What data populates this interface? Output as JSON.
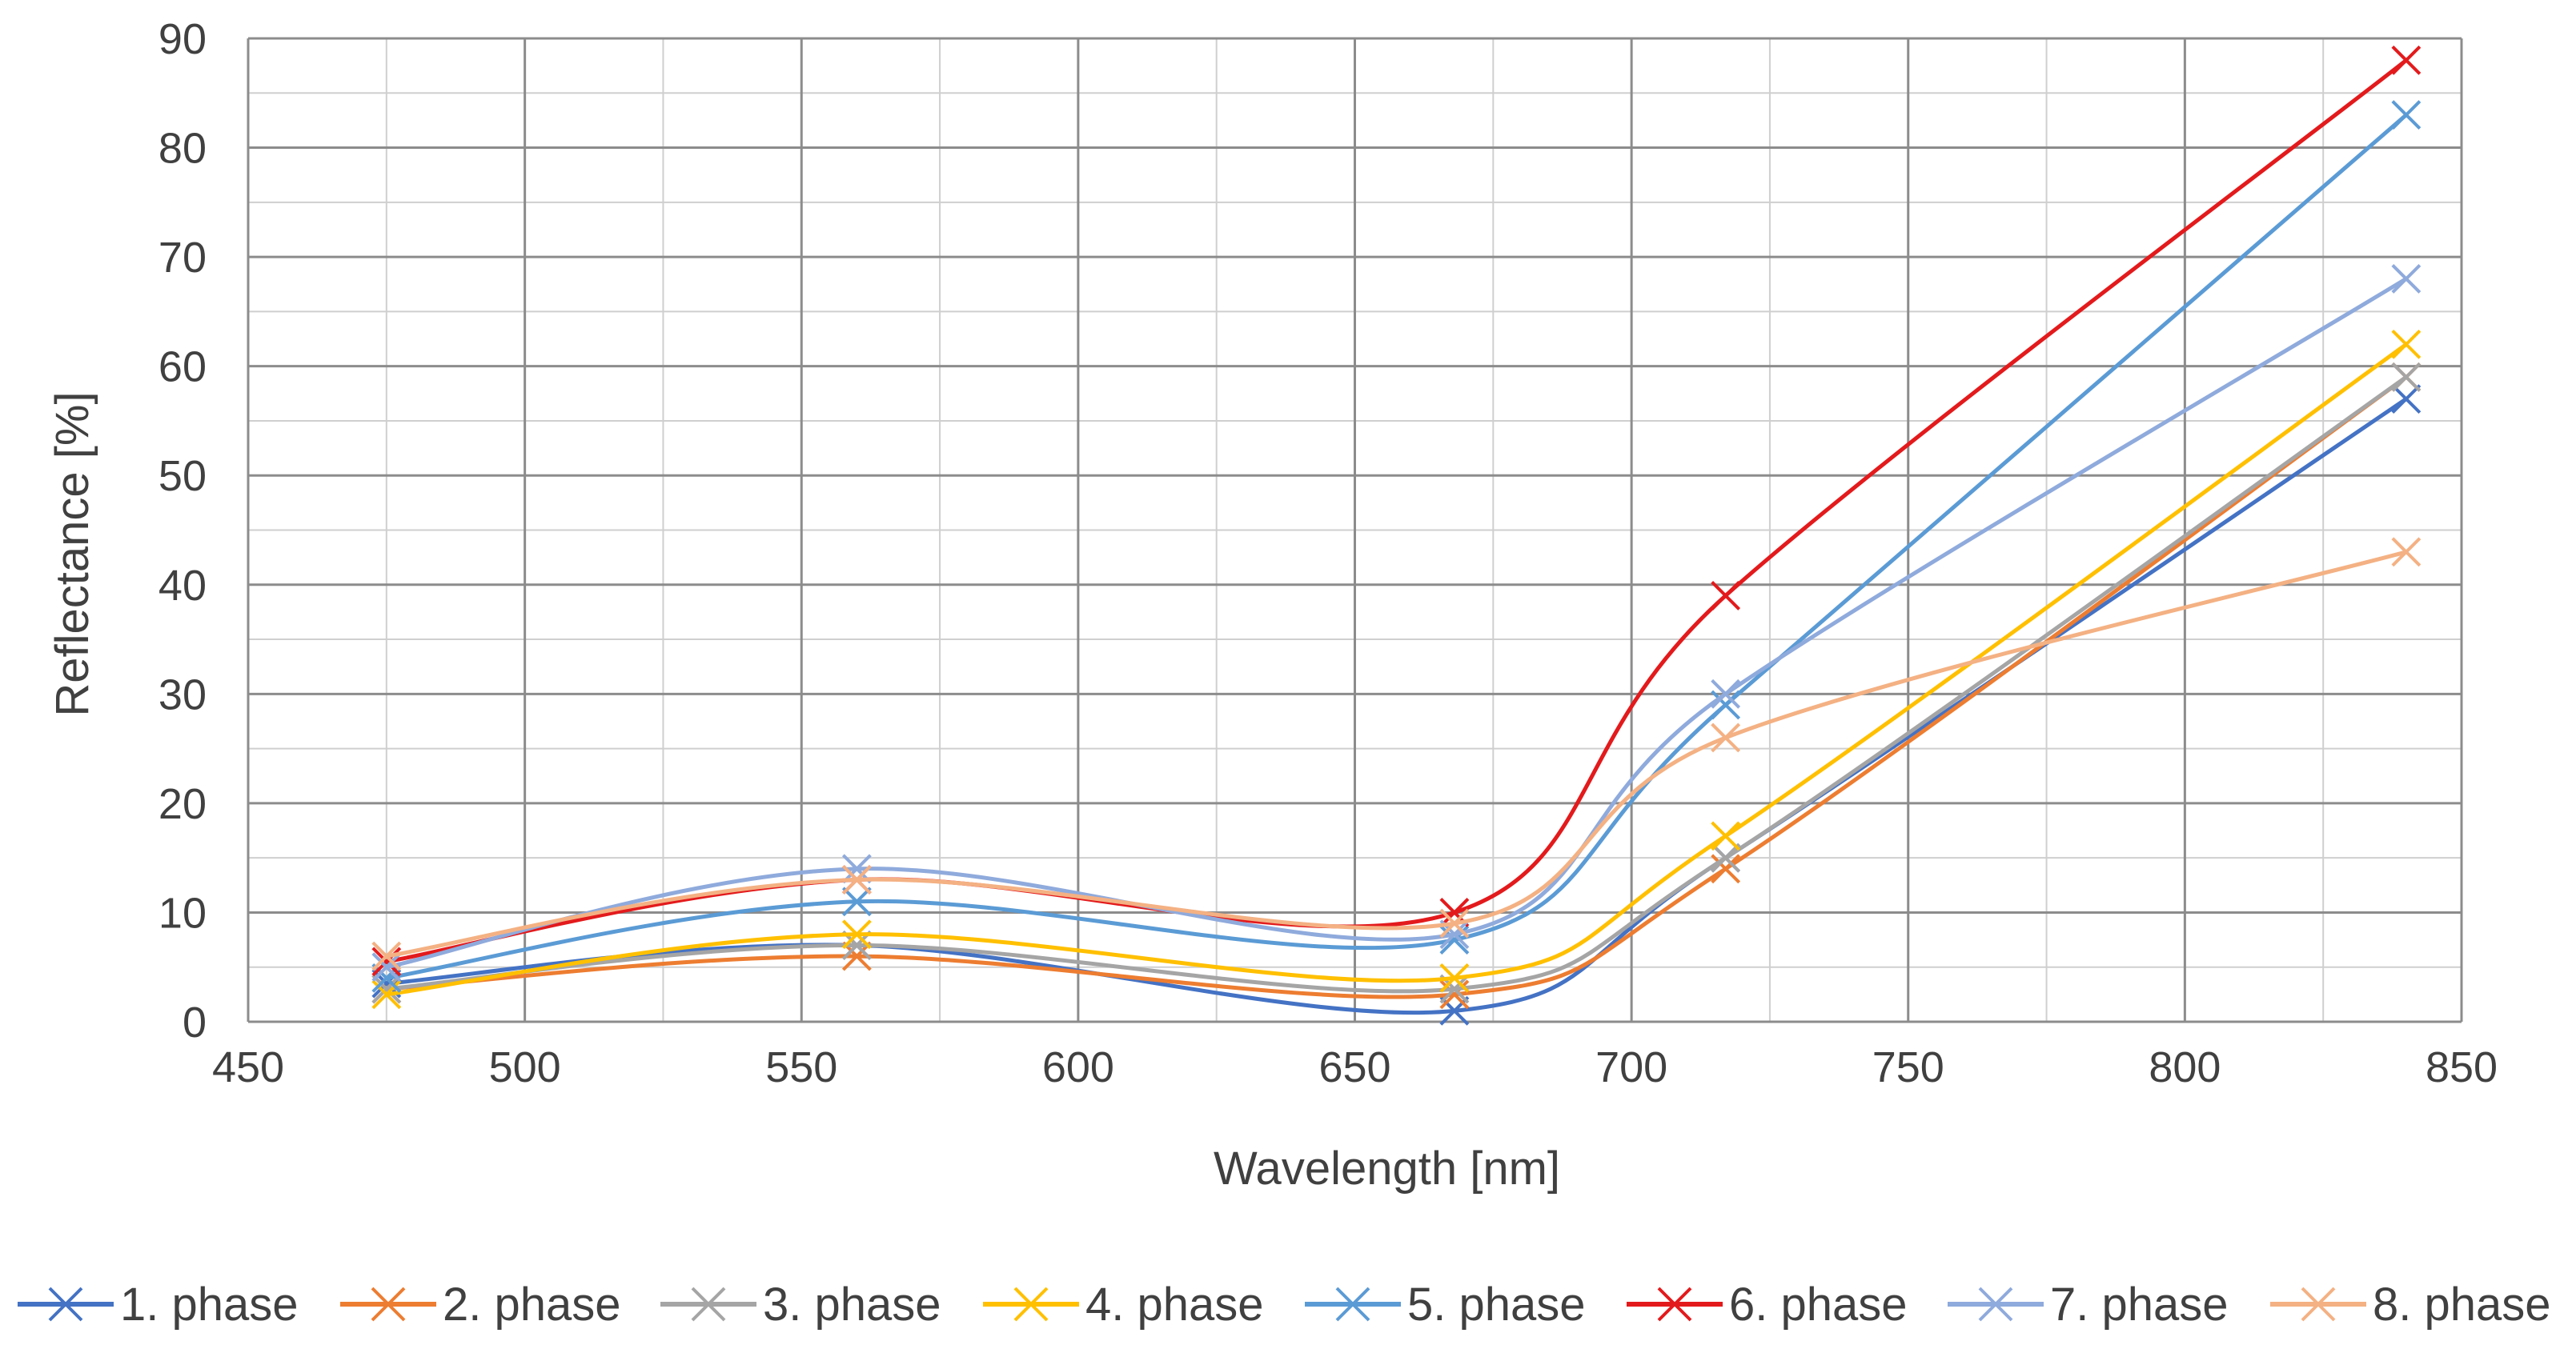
{
  "chart_data": {
    "type": "line",
    "title": "",
    "xlabel": "Wavelength  [nm]",
    "ylabel": "Reflectance  [%]",
    "xlim": [
      450,
      850
    ],
    "ylim": [
      0,
      90
    ],
    "x_ticks": [
      450,
      500,
      550,
      600,
      650,
      700,
      750,
      800,
      850
    ],
    "y_ticks": [
      0,
      10,
      20,
      30,
      40,
      50,
      60,
      70,
      80,
      90
    ],
    "x_minor_step": 25,
    "y_minor_step": 5,
    "grid": true,
    "legend_position": "bottom",
    "marker": "x",
    "smooth": true,
    "x": [
      475,
      560,
      668,
      717,
      840
    ],
    "series": [
      {
        "name": "1. phase",
        "color": "#4472c4",
        "values": [
          3.5,
          7,
          1,
          15,
          57
        ]
      },
      {
        "name": "2. phase",
        "color": "#ed7d31",
        "values": [
          3,
          6,
          2.5,
          14,
          59
        ]
      },
      {
        "name": "3. phase",
        "color": "#a5a5a5",
        "values": [
          3,
          7,
          3,
          15,
          59
        ]
      },
      {
        "name": "4. phase",
        "color": "#ffc000",
        "values": [
          2.5,
          8,
          4,
          17,
          62
        ]
      },
      {
        "name": "5. phase",
        "color": "#5b9bd5",
        "values": [
          4,
          11,
          7.5,
          29,
          83
        ]
      },
      {
        "name": "6. phase",
        "color": "#e31a1c",
        "values": [
          5.5,
          13,
          10,
          39,
          88
        ]
      },
      {
        "name": "7. phase",
        "color": "#8faadc",
        "values": [
          5,
          14,
          8,
          30,
          68
        ]
      },
      {
        "name": "8. phase",
        "color": "#f4b183",
        "values": [
          6,
          13,
          9,
          26,
          43
        ]
      }
    ]
  }
}
